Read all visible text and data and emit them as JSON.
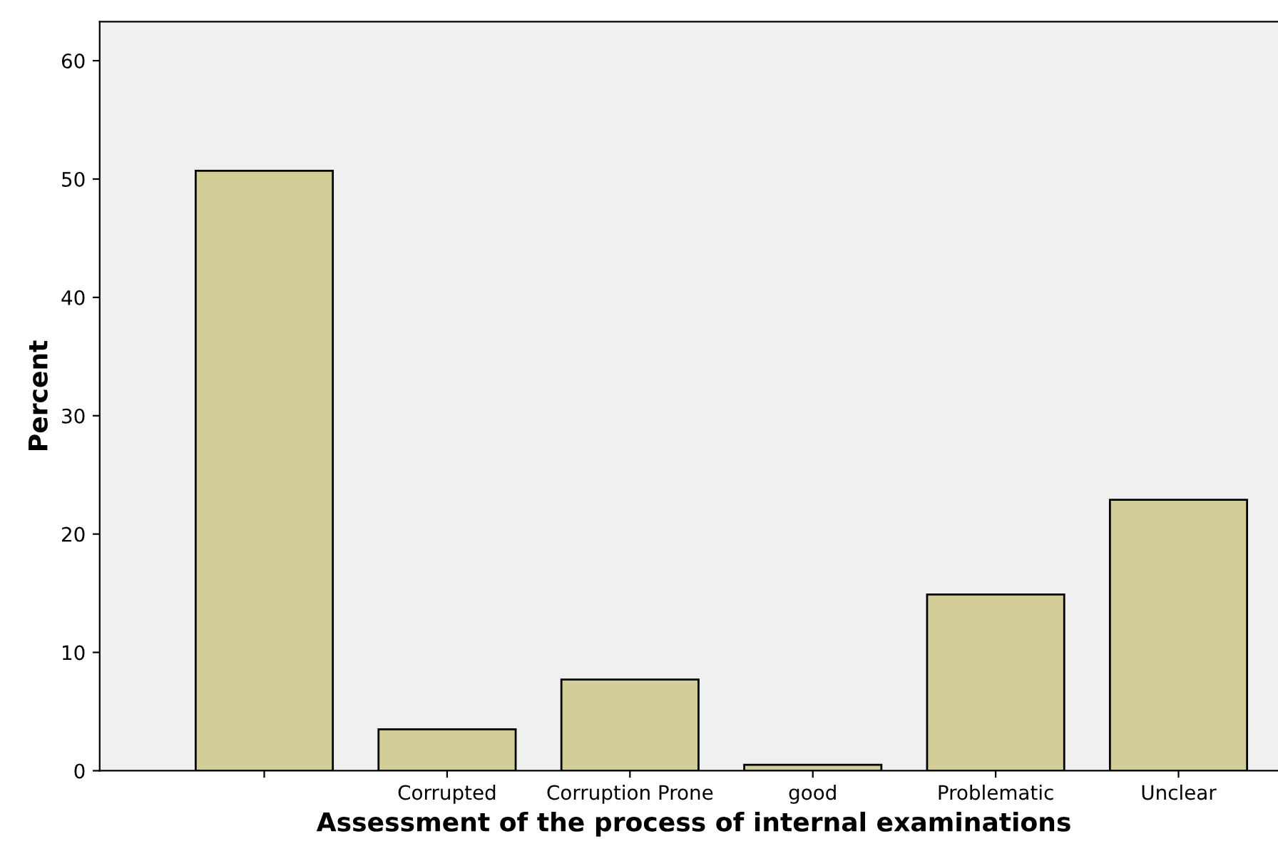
{
  "chart_data": {
    "type": "bar",
    "xlabel": "Assessment of the process of internal examinations",
    "ylabel": "Percent",
    "categories": [
      null,
      "Corrupted",
      "Corruption Prone",
      "good",
      "Problematic",
      "Unclear"
    ],
    "values": [
      50.7,
      3.5,
      7.7,
      0.5,
      14.9,
      22.9
    ],
    "color": "#d3ce97",
    "ylim": [
      0,
      63.3
    ],
    "yticks": [
      0,
      10,
      20,
      30,
      40,
      50,
      60
    ],
    "grid": false,
    "legend": false
  }
}
